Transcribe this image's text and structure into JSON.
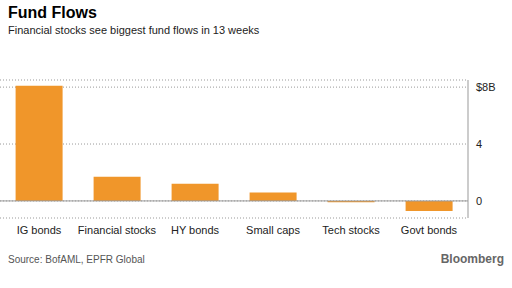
{
  "chart_data": {
    "type": "bar",
    "title": "Fund Flows",
    "subtitle": "Financial stocks see biggest fund flows in 13 weeks",
    "categories": [
      "IG bonds",
      "Financial stocks",
      "HY bonds",
      "Small caps",
      "Tech stocks",
      "Govt bonds"
    ],
    "values": [
      8.1,
      1.7,
      1.2,
      0.6,
      -0.1,
      -0.7
    ],
    "color": "#f0962a",
    "ylim": [
      -1.2,
      8.5
    ],
    "yticks": [
      0,
      4,
      {
        "value": 8,
        "label": "$8B"
      }
    ],
    "grid": true,
    "annotations": [
      "Source: BofAML, EPFR Global",
      "Bloomberg"
    ]
  }
}
